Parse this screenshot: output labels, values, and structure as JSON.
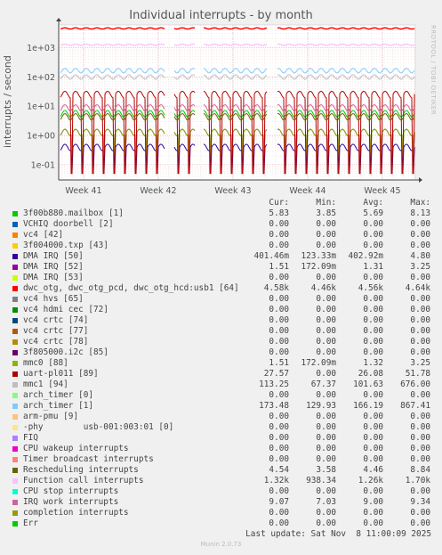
{
  "title": "Individual interrupts - by month",
  "side_label": "RRDTOOL / TOBI OETIKER",
  "footer": "Last update: Sat Nov  8 11:00:09 2025",
  "munin_version": "Munin 2.0.73",
  "legend_headers": [
    "Cur:",
    "Min:",
    "Avg:",
    "Max:"
  ],
  "chart_data": {
    "type": "line",
    "title": "Individual interrupts - by month",
    "ylabel": "interrupts / second",
    "y_scale": "log",
    "ylim": [
      0.03,
      6000
    ],
    "y_ticks": [
      {
        "value": 1000,
        "label": "1e+03"
      },
      {
        "value": 100,
        "label": "1e+02"
      },
      {
        "value": 10,
        "label": "1e+01"
      },
      {
        "value": 1,
        "label": "1e+00"
      },
      {
        "value": 0.1,
        "label": "1e-01"
      }
    ],
    "x_ticks": [
      "Week 41",
      "Week 42",
      "Week 43",
      "Week 44",
      "Week 45"
    ],
    "grid": true,
    "series": [
      {
        "name": "3f00b880.mailbox [1]",
        "color": "#00cc00",
        "cur": "5.83",
        "min": "3.85",
        "avg": "5.69",
        "max": "8.13",
        "level": 5.7
      },
      {
        "name": "VCHIQ doorbell [2]",
        "color": "#0066b3",
        "cur": "0.00",
        "min": "0.00",
        "avg": "0.00",
        "max": "0.00",
        "level": null
      },
      {
        "name": "vc4 [42]",
        "color": "#ff8000",
        "cur": "0.00",
        "min": "0.00",
        "avg": "0.00",
        "max": "0.00",
        "level": null
      },
      {
        "name": "3f004000.txp [43]",
        "color": "#ffcc00",
        "cur": "0.00",
        "min": "0.00",
        "avg": "0.00",
        "max": "0.00",
        "level": null
      },
      {
        "name": "DMA IRQ [50]",
        "color": "#330099",
        "cur": "401.46m",
        "min": "123.33m",
        "avg": "402.92m",
        "max": "4.80",
        "level": 0.4
      },
      {
        "name": "DMA IRQ [52]",
        "color": "#990099",
        "cur": "1.51",
        "min": "172.09m",
        "avg": "1.31",
        "max": "3.25",
        "level": 1.3
      },
      {
        "name": "DMA IRQ [53]",
        "color": "#ccff00",
        "cur": "0.00",
        "min": "0.00",
        "avg": "0.00",
        "max": "0.00",
        "level": null
      },
      {
        "name": "dwc_otg, dwc_otg_pcd, dwc_otg_hcd:usb1 [64]",
        "color": "#ff0000",
        "cur": "4.58k",
        "min": "4.46k",
        "avg": "4.56k",
        "max": "4.64k",
        "level": 4560
      },
      {
        "name": "vc4 hvs [65]",
        "color": "#808080",
        "cur": "0.00",
        "min": "0.00",
        "avg": "0.00",
        "max": "0.00",
        "level": null
      },
      {
        "name": "vc4 hdmi cec [72]",
        "color": "#008f00",
        "cur": "0.00",
        "min": "0.00",
        "avg": "0.00",
        "max": "0.00",
        "level": null
      },
      {
        "name": "vc4 crtc [74]",
        "color": "#00487d",
        "cur": "0.00",
        "min": "0.00",
        "avg": "0.00",
        "max": "0.00",
        "level": null
      },
      {
        "name": "vc4 crtc [77]",
        "color": "#b35a00",
        "cur": "0.00",
        "min": "0.00",
        "avg": "0.00",
        "max": "0.00",
        "level": null
      },
      {
        "name": "vc4 crtc [78]",
        "color": "#b38f00",
        "cur": "0.00",
        "min": "0.00",
        "avg": "0.00",
        "max": "0.00",
        "level": null
      },
      {
        "name": "3f805000.i2c [85]",
        "color": "#6b006b",
        "cur": "0.00",
        "min": "0.00",
        "avg": "0.00",
        "max": "0.00",
        "level": null
      },
      {
        "name": "mmc0 [88]",
        "color": "#8fb300",
        "cur": "1.51",
        "min": "172.09m",
        "avg": "1.32",
        "max": "3.25",
        "level": 1.32
      },
      {
        "name": "uart-pl011 [89]",
        "color": "#b30000",
        "cur": "27.57",
        "min": "0.00",
        "avg": "26.08",
        "max": "51.78",
        "level": 26
      },
      {
        "name": "mmc1 [94]",
        "color": "#bebebe",
        "cur": "113.25",
        "min": "67.37",
        "avg": "101.63",
        "max": "676.00",
        "level": 101
      },
      {
        "name": "arch_timer [0]",
        "color": "#80ff80",
        "cur": "0.00",
        "min": "0.00",
        "avg": "0.00",
        "max": "0.00",
        "level": null
      },
      {
        "name": "arch_timer [1]",
        "color": "#80c9ff",
        "cur": "173.48",
        "min": "129.93",
        "avg": "166.19",
        "max": "867.41",
        "level": 166
      },
      {
        "name": "arm-pmu [9]",
        "color": "#ffc080",
        "cur": "0.00",
        "min": "0.00",
        "avg": "0.00",
        "max": "0.00",
        "level": null
      },
      {
        "name": "-phy        usb-001:003:01 [0]",
        "color": "#ffe680",
        "cur": "0.00",
        "min": "0.00",
        "avg": "0.00",
        "max": "0.00",
        "level": null
      },
      {
        "name": "FIQ",
        "color": "#aa80ff",
        "cur": "0.00",
        "min": "0.00",
        "avg": "0.00",
        "max": "0.00",
        "level": null
      },
      {
        "name": "CPU wakeup interrupts",
        "color": "#ee00cc",
        "cur": "0.00",
        "min": "0.00",
        "avg": "0.00",
        "max": "0.00",
        "level": null
      },
      {
        "name": "Timer broadcast interrupts",
        "color": "#ff8080",
        "cur": "0.00",
        "min": "0.00",
        "avg": "0.00",
        "max": "0.00",
        "level": null
      },
      {
        "name": "Rescheduling interrupts",
        "color": "#666600",
        "cur": "4.54",
        "min": "3.58",
        "avg": "4.46",
        "max": "8.84",
        "level": 4.46
      },
      {
        "name": "Function call interrupts",
        "color": "#ffbfff",
        "cur": "1.32k",
        "min": "938.34",
        "avg": "1.26k",
        "max": "1.70k",
        "level": 1260
      },
      {
        "name": "CPU stop interrupts",
        "color": "#00ffcc",
        "cur": "0.00",
        "min": "0.00",
        "avg": "0.00",
        "max": "0.00",
        "level": null
      },
      {
        "name": "IRQ work interrupts",
        "color": "#cc6699",
        "cur": "9.07",
        "min": "7.03",
        "avg": "9.00",
        "max": "9.34",
        "level": 9.0
      },
      {
        "name": "completion interrupts",
        "color": "#999900",
        "cur": "0.00",
        "min": "0.00",
        "avg": "0.00",
        "max": "0.00",
        "level": null
      },
      {
        "name": "Err",
        "color": "#00cc00",
        "cur": "0.00",
        "min": "0.00",
        "avg": "0.00",
        "max": "0.00",
        "level": null
      }
    ]
  }
}
